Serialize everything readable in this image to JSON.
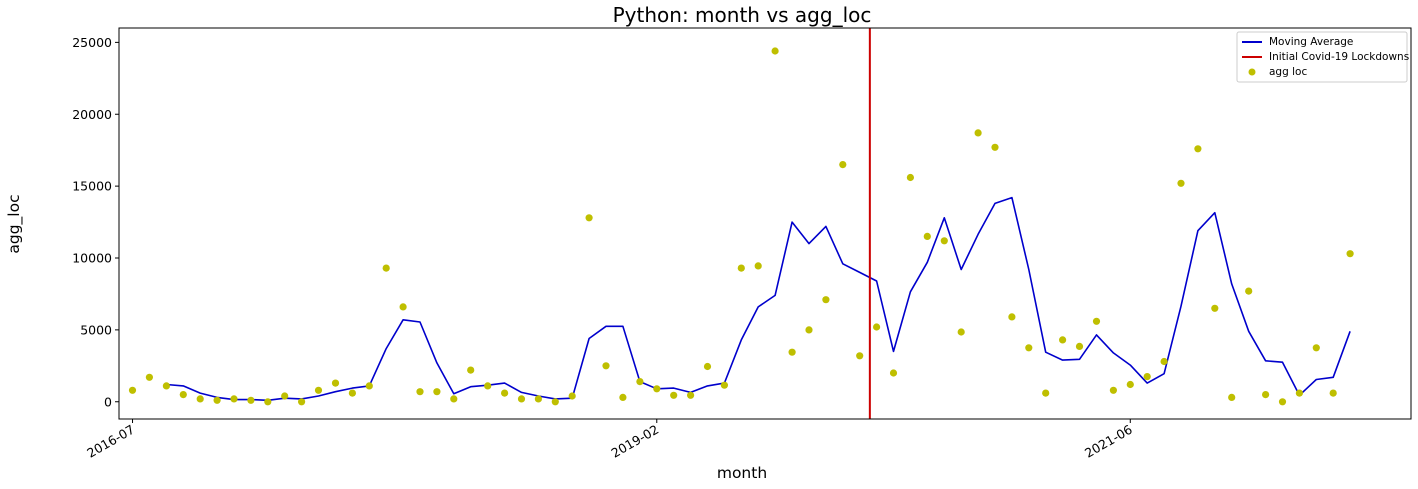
{
  "chart_data": {
    "type": "line",
    "title": "Python: month vs agg_loc",
    "xlabel": "month",
    "ylabel": "agg_loc",
    "x_ticks": [
      {
        "label": "2016-07",
        "month_index": 0
      },
      {
        "label": "2019-02",
        "month_index": 31
      },
      {
        "label": "2021-06",
        "month_index": 59
      }
    ],
    "x_range_months": [
      -0.8,
      75.6
    ],
    "ylim": [
      -1200,
      26000
    ],
    "y_ticks": [
      0,
      5000,
      10000,
      15000,
      20000,
      25000
    ],
    "grid": false,
    "legend_position": "top-right",
    "series": [
      {
        "name": "Moving Average",
        "kind": "line",
        "color": "#0000cc",
        "start_month_index": 2,
        "values": [
          1200,
          1100,
          600,
          300,
          150,
          150,
          100,
          250,
          200,
          400,
          700,
          950,
          1100,
          3700,
          5700,
          5550,
          2700,
          550,
          1050,
          1150,
          1300,
          650,
          400,
          200,
          250,
          4400,
          5250,
          5250,
          1400,
          900,
          950,
          650,
          1100,
          1300,
          4300,
          6600,
          7400,
          12500,
          11000,
          12200,
          9600,
          9000,
          8400,
          3500,
          7650,
          9700,
          12800,
          9200,
          11650,
          13800,
          14200,
          9200,
          3450,
          2900,
          2950,
          4650,
          3400,
          2550,
          1300,
          1950,
          6650,
          11900,
          13150,
          8200,
          4900,
          2850,
          2750,
          450,
          1550,
          1700,
          4900
        ]
      },
      {
        "name": "agg loc",
        "kind": "scatter",
        "color": "#bfbf00",
        "start_month_index": 0,
        "values": [
          800,
          1700,
          1100,
          500,
          200,
          100,
          200,
          100,
          0,
          400,
          0,
          800,
          1300,
          600,
          1100,
          9300,
          6600,
          700,
          700,
          200,
          2200,
          1100,
          600,
          200,
          200,
          0,
          400,
          12800,
          2500,
          300,
          1400,
          900,
          450,
          450,
          2450,
          1150,
          9300,
          9450,
          24400,
          3450,
          5000,
          7100,
          16500,
          3200,
          5200,
          2000,
          15600,
          11500,
          11200,
          4850,
          18700,
          17700,
          5900,
          3750,
          600,
          4300,
          3850,
          5600,
          800,
          1200,
          1750,
          2800,
          15200,
          17600,
          6500,
          300,
          7700,
          500,
          0,
          600,
          3750,
          600,
          10300
        ]
      }
    ],
    "annotations": [
      {
        "name": "Initial Covid-19 Lockdowns",
        "kind": "vline",
        "color": "#cc0000",
        "month_index": 43.6
      }
    ]
  }
}
